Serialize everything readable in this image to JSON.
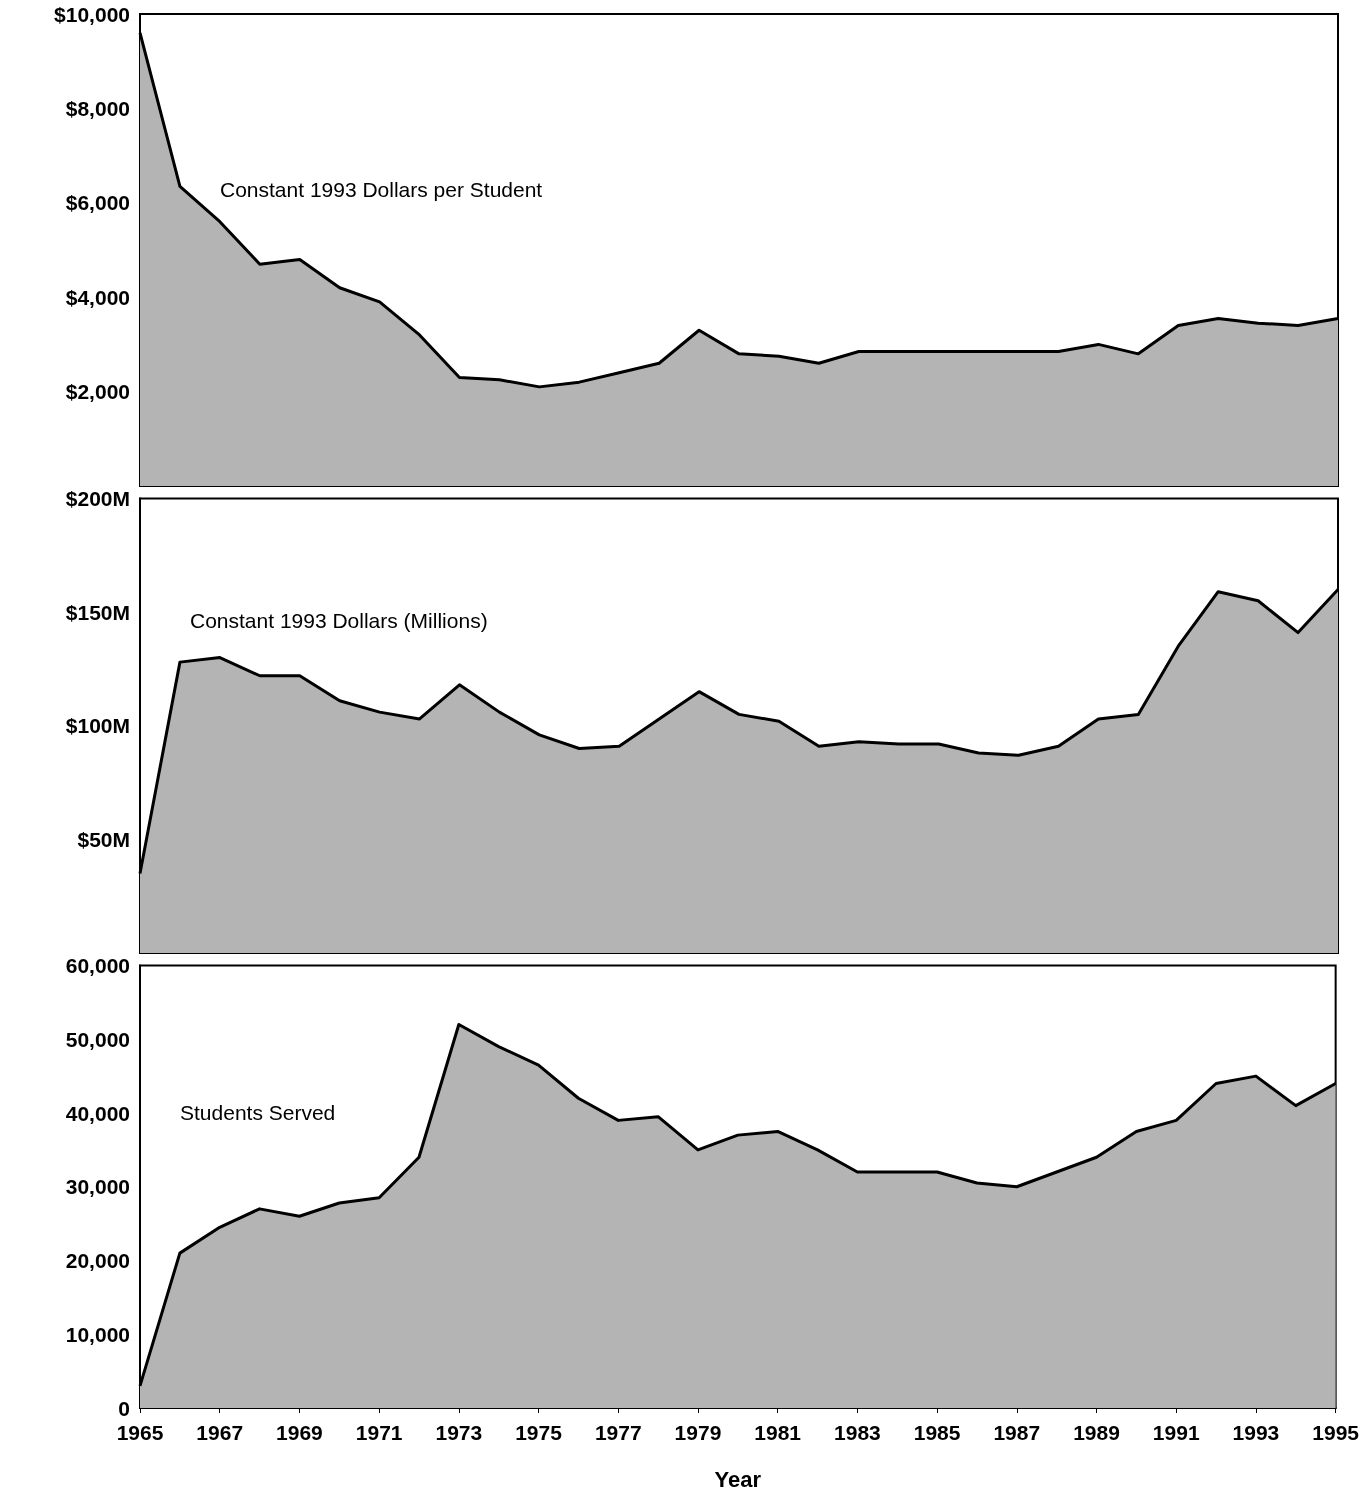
{
  "chart_data": [
    {
      "type": "area",
      "x": [
        1965,
        1966,
        1967,
        1968,
        1969,
        1970,
        1971,
        1972,
        1973,
        1974,
        1975,
        1976,
        1977,
        1978,
        1979,
        1980,
        1981,
        1982,
        1983,
        1984,
        1985,
        1986,
        1987,
        1988,
        1989,
        1990,
        1991,
        1992,
        1993,
        1994,
        1995
      ],
      "series": [
        {
          "color": "#b4b4b4",
          "values": [
            9600,
            6350,
            5600,
            4700,
            4800,
            4200,
            3900,
            3200,
            2300,
            2250,
            2100,
            2200,
            2400,
            2600,
            3300,
            2800,
            2750,
            2600,
            2850,
            2850,
            2850,
            2850,
            2850,
            2850,
            3000,
            2800,
            3400,
            3550,
            3450,
            3400,
            3550
          ]
        }
      ],
      "xlim": [
        1965,
        1995
      ],
      "xticks": [
        1965,
        1967,
        1969,
        1971,
        1973,
        1975,
        1977,
        1979,
        1981,
        1983,
        1985,
        1987,
        1989,
        1991,
        1993,
        1995
      ],
      "ylim": [
        0,
        10000
      ],
      "yticks": [
        {
          "value": 2000,
          "label": "$2,000"
        },
        {
          "value": 4000,
          "label": "$4,000"
        },
        {
          "value": 6000,
          "label": "$6,000"
        },
        {
          "value": 8000,
          "label": "$8,000"
        },
        {
          "value": 10000,
          "label": "$10,000"
        }
      ],
      "tick_labels": "y",
      "grid": false,
      "annotations": [
        "Constant 1993 Dollars per Student"
      ]
    },
    {
      "type": "area",
      "x": [
        1965,
        1966,
        1967,
        1968,
        1969,
        1970,
        1971,
        1972,
        1973,
        1974,
        1975,
        1976,
        1977,
        1978,
        1979,
        1980,
        1981,
        1982,
        1983,
        1984,
        1985,
        1986,
        1987,
        1988,
        1989,
        1990,
        1991,
        1992,
        1993,
        1994,
        1995
      ],
      "series": [
        {
          "color": "#b4b4b4",
          "values": [
            35,
            128,
            130,
            122,
            122,
            111,
            106,
            103,
            118,
            106,
            96,
            90,
            91,
            103,
            115,
            105,
            102,
            91,
            93,
            92,
            92,
            88,
            87,
            91,
            103,
            105,
            135,
            159,
            155,
            141,
            160
          ]
        }
      ],
      "xlim": [
        1965,
        1995
      ],
      "xticks": [
        1965,
        1967,
        1969,
        1971,
        1973,
        1975,
        1977,
        1979,
        1981,
        1983,
        1985,
        1987,
        1989,
        1991,
        1993,
        1995
      ],
      "ylim": [
        0,
        200
      ],
      "yticks": [
        {
          "value": 50,
          "label": "$50M"
        },
        {
          "value": 100,
          "label": "$100M"
        },
        {
          "value": 150,
          "label": "$150M"
        },
        {
          "value": 200,
          "label": "$200M"
        }
      ],
      "tick_labels": "y",
      "grid": false,
      "annotations": [
        "Constant 1993 Dollars (Millions)"
      ]
    },
    {
      "type": "area",
      "x": [
        1965,
        1966,
        1967,
        1968,
        1969,
        1970,
        1971,
        1972,
        1973,
        1974,
        1975,
        1976,
        1977,
        1978,
        1979,
        1980,
        1981,
        1982,
        1983,
        1984,
        1985,
        1986,
        1987,
        1988,
        1989,
        1990,
        1991,
        1992,
        1993,
        1994,
        1995
      ],
      "series": [
        {
          "color": "#b4b4b4",
          "values": [
            3000,
            21000,
            24500,
            27000,
            26000,
            27800,
            28500,
            34000,
            52000,
            49000,
            46500,
            42000,
            39000,
            39500,
            35000,
            37000,
            37500,
            35000,
            32000,
            32000,
            32000,
            30500,
            30000,
            32000,
            34000,
            37500,
            39000,
            44000,
            45000,
            41000,
            44000
          ]
        }
      ],
      "xlim": [
        1965,
        1995
      ],
      "xticks": [
        1965,
        1967,
        1969,
        1971,
        1973,
        1975,
        1977,
        1979,
        1981,
        1983,
        1985,
        1987,
        1989,
        1991,
        1993,
        1995
      ],
      "ylim": [
        0,
        60000
      ],
      "yticks": [
        0,
        {
          "value": 10000,
          "label": "10,000"
        },
        {
          "value": 20000,
          "label": "20,000"
        },
        {
          "value": 30000,
          "label": "30,000"
        },
        {
          "value": 40000,
          "label": "40,000"
        },
        {
          "value": 50000,
          "label": "50,000"
        },
        {
          "value": 60000,
          "label": "60,000"
        }
      ],
      "xlabel": "Year",
      "grid": false,
      "annotations": [
        "Students Served"
      ]
    }
  ]
}
